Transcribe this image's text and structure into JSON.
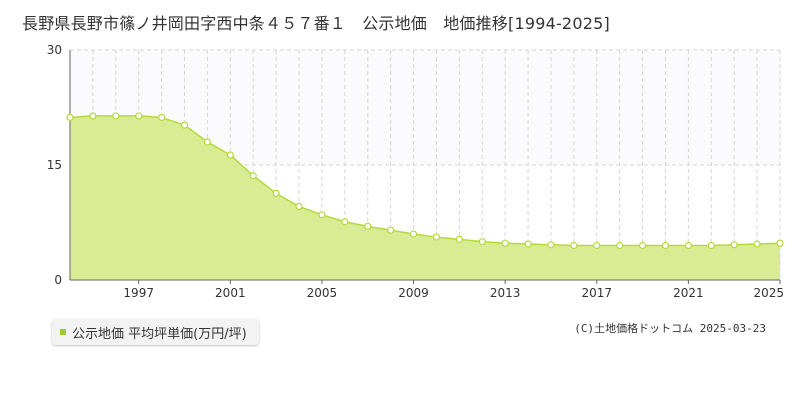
{
  "title": "長野県長野市篠ノ井岡田字西中条４５７番１　公示地価　地価推移[1994-2025]",
  "legend": {
    "label": "公示地価 平均坪単価(万円/坪)"
  },
  "credit": "(C)土地価格ドットコム 2025-03-23",
  "colors": {
    "area_fill": "#d9ec94",
    "line": "#b5d93a",
    "point_fill": "#ffffff",
    "legend_marker": "#9acd32"
  },
  "chart_data": {
    "type": "area",
    "x": [
      1994,
      1995,
      1996,
      1997,
      1998,
      1999,
      2000,
      2001,
      2002,
      2003,
      2004,
      2005,
      2006,
      2007,
      2008,
      2009,
      2010,
      2011,
      2012,
      2013,
      2014,
      2015,
      2016,
      2017,
      2018,
      2019,
      2020,
      2021,
      2022,
      2023,
      2024,
      2025
    ],
    "series": [
      {
        "values": [
          21.2,
          21.4,
          21.4,
          21.4,
          21.2,
          20.2,
          18.0,
          16.3,
          13.6,
          11.3,
          9.6,
          8.5,
          7.6,
          7.0,
          6.5,
          6.0,
          5.6,
          5.3,
          5.0,
          4.8,
          4.7,
          4.6,
          4.5,
          4.5,
          4.5,
          4.5,
          4.5,
          4.5,
          4.5,
          4.6,
          4.7,
          4.8
        ]
      }
    ],
    "x_tick_labels": [
      "1997",
      "2001",
      "2005",
      "2009",
      "2013",
      "2017",
      "2021",
      "2025"
    ],
    "y_tick_labels": [
      "0",
      "15",
      "30"
    ],
    "ylim": [
      0,
      30
    ],
    "xlim": [
      1994,
      2025
    ],
    "grid": true,
    "legend_position": "bottom-left"
  }
}
